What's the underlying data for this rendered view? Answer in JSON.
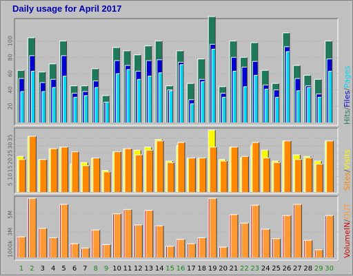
{
  "title": "Daily usage for April 2017",
  "colors": {
    "background": "#c0c0c0",
    "panel": "#c0c0c0",
    "hits": "#1f7a5c",
    "files": "#0000d0",
    "pages": "#00d8f8",
    "visits": "#f8f800",
    "sites": "#ff8800",
    "kbytes": "#d00000",
    "kbytes_out": "#ff9933",
    "title": "#0000b0",
    "weekend": "#188818"
  },
  "chart_data": [
    {
      "type": "bar",
      "title": "",
      "categories": [
        "1",
        "2",
        "3",
        "4",
        "5",
        "6",
        "7",
        "8",
        "9",
        "10",
        "11",
        "12",
        "13",
        "14",
        "15",
        "16",
        "17",
        "18",
        "19",
        "20",
        "21",
        "22",
        "23",
        "24",
        "25",
        "26",
        "27",
        "28",
        "29",
        "30"
      ],
      "weekend_days": [
        "1",
        "2",
        "8",
        "9",
        "15",
        "16",
        "22",
        "23",
        "29",
        "30"
      ],
      "ylim": [
        0,
        125
      ],
      "yticks": [
        "20",
        "40",
        "60",
        "80",
        "100"
      ],
      "legend": [
        {
          "label": "Hits",
          "color": "#1f7a5c"
        },
        {
          "label": "/",
          "color": "#606060"
        },
        {
          "label": "Files",
          "color": "#0000d0"
        },
        {
          "label": "/",
          "color": "#606060"
        },
        {
          "label": "Pages",
          "color": "#00d8f8"
        }
      ],
      "series": [
        {
          "name": "Hits",
          "values": [
            64,
            104,
            62,
            72,
            100,
            45,
            45,
            66,
            33,
            92,
            88,
            83,
            94,
            100,
            45,
            88,
            48,
            78,
            130,
            44,
            100,
            80,
            98,
            64,
            48,
            110,
            70,
            58,
            53,
            100
          ]
        },
        {
          "name": "Files",
          "values": [
            54,
            82,
            49,
            53,
            82,
            36,
            38,
            51,
            25,
            76,
            70,
            63,
            76,
            77,
            40,
            74,
            28,
            53,
            96,
            36,
            80,
            68,
            75,
            46,
            40,
            93,
            54,
            45,
            35,
            78
          ]
        },
        {
          "name": "Pages",
          "values": [
            38,
            63,
            38,
            43,
            57,
            31,
            33,
            43,
            25,
            60,
            65,
            53,
            57,
            61,
            39,
            71,
            23,
            50,
            90,
            31,
            63,
            44,
            58,
            41,
            31,
            87,
            39,
            43,
            31,
            63
          ]
        }
      ]
    },
    {
      "type": "bar",
      "title": "",
      "categories": [
        "1",
        "2",
        "3",
        "4",
        "5",
        "6",
        "7",
        "8",
        "9",
        "10",
        "11",
        "12",
        "13",
        "14",
        "15",
        "16",
        "17",
        "18",
        "19",
        "20",
        "21",
        "22",
        "23",
        "24",
        "25",
        "26",
        "27",
        "28",
        "29",
        "30"
      ],
      "ylim": [
        0,
        40
      ],
      "yticks": [
        "5",
        "10",
        "15",
        "20",
        "25",
        "30",
        "35"
      ],
      "legend": [
        {
          "label": "Sites",
          "color": "#ff8800"
        },
        {
          "label": "/",
          "color": "#606060"
        },
        {
          "label": "Visits",
          "color": "#f8f800"
        }
      ],
      "series": [
        {
          "name": "Visits",
          "values": [
            23,
            36,
            21,
            28,
            29,
            18,
            19,
            22,
            14,
            26,
            28,
            27,
            29,
            34,
            20,
            30,
            22,
            22,
            40,
            21,
            29,
            22,
            30,
            27,
            20,
            33,
            24,
            23,
            20,
            33
          ]
        },
        {
          "name": "Sites",
          "values": [
            21,
            36,
            21,
            28,
            29,
            26,
            17,
            22,
            13,
            26,
            28,
            24,
            27,
            33,
            19,
            32,
            22,
            22,
            29,
            20,
            29,
            23,
            32,
            22,
            19,
            33,
            21,
            22,
            18,
            33
          ]
        }
      ]
    },
    {
      "type": "bar",
      "title": "",
      "categories": [
        "1",
        "2",
        "3",
        "4",
        "5",
        "6",
        "7",
        "8",
        "9",
        "10",
        "11",
        "12",
        "13",
        "14",
        "15",
        "16",
        "17",
        "18",
        "19",
        "20",
        "21",
        "22",
        "23",
        "24",
        "25",
        "26",
        "27",
        "28",
        "29",
        "30"
      ],
      "ylim": [
        0,
        7
      ],
      "yticks": [
        "1000k",
        "3M",
        "5M"
      ],
      "legend": [
        {
          "label": "Volume",
          "color": "#d00000"
        },
        {
          "label": "IN",
          "color": "#d00000"
        },
        {
          "label": "/",
          "color": "#606060"
        },
        {
          "label": "OUT",
          "color": "#ff9933"
        }
      ],
      "series": [
        {
          "name": "IN",
          "values": [
            2.4,
            6.9,
            3.4,
            2.3,
            6.2,
            1.6,
            1.1,
            3.2,
            1.5,
            5.1,
            5.6,
            3.8,
            5.5,
            3.7,
            1.3,
            2.1,
            1.6,
            2.3,
            6.9,
            1.2,
            5.0,
            4.0,
            6.1,
            3.3,
            2.2,
            4.9,
            6.2,
            2.0,
            0.9,
            4.9
          ]
        },
        {
          "name": "OUT",
          "values": [
            2.4,
            6.9,
            3.4,
            2.3,
            6.2,
            1.6,
            1.1,
            3.2,
            1.5,
            5.1,
            5.6,
            3.8,
            5.5,
            3.7,
            1.3,
            2.1,
            1.6,
            2.3,
            6.9,
            1.2,
            5.0,
            4.0,
            6.1,
            3.3,
            2.2,
            4.9,
            6.2,
            2.0,
            0.9,
            4.9
          ]
        }
      ]
    }
  ]
}
